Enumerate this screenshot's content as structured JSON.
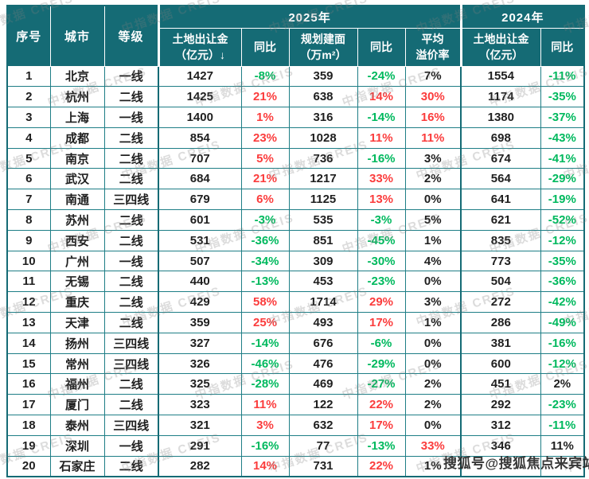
{
  "chart_data": {
    "type": "table",
    "column_groups": [
      {
        "label": "2025年",
        "span": 5
      },
      {
        "label": "2024年",
        "span": 2
      }
    ],
    "fixed_columns": [
      {
        "key": "no",
        "label": "序号"
      },
      {
        "key": "city",
        "label": "城市"
      },
      {
        "key": "tier",
        "label": "等级"
      }
    ],
    "sub_columns": [
      {
        "key": "land_fee_2025",
        "l1": "土地出让金",
        "l2": "（亿元）↓"
      },
      {
        "key": "land_fee_2025_yoy",
        "l1": "同比",
        "l2": ""
      },
      {
        "key": "plan_area_2025",
        "l1": "规划建面",
        "l2": "（万m²）"
      },
      {
        "key": "plan_area_2025_yoy",
        "l1": "同比",
        "l2": ""
      },
      {
        "key": "avg_premium_rate",
        "l1": "平均",
        "l2": "溢价率"
      },
      {
        "key": "land_fee_2024",
        "l1": "土地出让金",
        "l2": "（亿元）"
      },
      {
        "key": "land_fee_2024_yoy",
        "l1": "同比",
        "l2": ""
      }
    ],
    "color_legend": {
      "g": "negative-green",
      "r": "positive-red",
      "default": "dark"
    },
    "rows": [
      [
        {
          "v": "1"
        },
        {
          "v": "北京"
        },
        {
          "v": "一线"
        },
        {
          "v": "1427"
        },
        {
          "v": "-8%",
          "c": "g"
        },
        {
          "v": "359"
        },
        {
          "v": "-24%",
          "c": "g"
        },
        {
          "v": "7%"
        },
        {
          "v": "1554"
        },
        {
          "v": "-11%",
          "c": "g"
        }
      ],
      [
        {
          "v": "2"
        },
        {
          "v": "杭州"
        },
        {
          "v": "二线"
        },
        {
          "v": "1425"
        },
        {
          "v": "21%",
          "c": "r"
        },
        {
          "v": "638"
        },
        {
          "v": "14%",
          "c": "r"
        },
        {
          "v": "30%",
          "c": "r"
        },
        {
          "v": "1174"
        },
        {
          "v": "-35%",
          "c": "g"
        }
      ],
      [
        {
          "v": "3"
        },
        {
          "v": "上海"
        },
        {
          "v": "一线"
        },
        {
          "v": "1400"
        },
        {
          "v": "1%",
          "c": "r"
        },
        {
          "v": "316"
        },
        {
          "v": "-14%",
          "c": "g"
        },
        {
          "v": "16%",
          "c": "r"
        },
        {
          "v": "1380"
        },
        {
          "v": "-37%",
          "c": "g"
        }
      ],
      [
        {
          "v": "4"
        },
        {
          "v": "成都"
        },
        {
          "v": "二线"
        },
        {
          "v": "854"
        },
        {
          "v": "23%",
          "c": "r"
        },
        {
          "v": "1028"
        },
        {
          "v": "11%",
          "c": "r"
        },
        {
          "v": "11%",
          "c": "r"
        },
        {
          "v": "698"
        },
        {
          "v": "-43%",
          "c": "g"
        }
      ],
      [
        {
          "v": "5"
        },
        {
          "v": "南京"
        },
        {
          "v": "二线"
        },
        {
          "v": "707"
        },
        {
          "v": "5%",
          "c": "r"
        },
        {
          "v": "736"
        },
        {
          "v": "-16%",
          "c": "g"
        },
        {
          "v": "3%"
        },
        {
          "v": "674"
        },
        {
          "v": "-41%",
          "c": "g"
        }
      ],
      [
        {
          "v": "6"
        },
        {
          "v": "武汉"
        },
        {
          "v": "二线"
        },
        {
          "v": "684"
        },
        {
          "v": "21%",
          "c": "r"
        },
        {
          "v": "1217"
        },
        {
          "v": "33%",
          "c": "r"
        },
        {
          "v": "2%"
        },
        {
          "v": "564"
        },
        {
          "v": "-29%",
          "c": "g"
        }
      ],
      [
        {
          "v": "7"
        },
        {
          "v": "南通"
        },
        {
          "v": "三四线"
        },
        {
          "v": "679"
        },
        {
          "v": "6%",
          "c": "r"
        },
        {
          "v": "1125"
        },
        {
          "v": "13%",
          "c": "r"
        },
        {
          "v": "0%"
        },
        {
          "v": "641"
        },
        {
          "v": "-19%",
          "c": "g"
        }
      ],
      [
        {
          "v": "8"
        },
        {
          "v": "苏州"
        },
        {
          "v": "二线"
        },
        {
          "v": "601"
        },
        {
          "v": "-3%",
          "c": "g"
        },
        {
          "v": "535"
        },
        {
          "v": "-3%",
          "c": "g"
        },
        {
          "v": "5%"
        },
        {
          "v": "621"
        },
        {
          "v": "-52%",
          "c": "g"
        }
      ],
      [
        {
          "v": "9"
        },
        {
          "v": "西安"
        },
        {
          "v": "二线"
        },
        {
          "v": "531"
        },
        {
          "v": "-36%",
          "c": "g"
        },
        {
          "v": "851"
        },
        {
          "v": "-45%",
          "c": "g"
        },
        {
          "v": "1%"
        },
        {
          "v": "835"
        },
        {
          "v": "-12%",
          "c": "g"
        }
      ],
      [
        {
          "v": "10"
        },
        {
          "v": "广州"
        },
        {
          "v": "一线"
        },
        {
          "v": "507"
        },
        {
          "v": "-34%",
          "c": "g"
        },
        {
          "v": "309"
        },
        {
          "v": "-30%",
          "c": "g"
        },
        {
          "v": "4%"
        },
        {
          "v": "773"
        },
        {
          "v": "-35%",
          "c": "g"
        }
      ],
      [
        {
          "v": "11"
        },
        {
          "v": "无锡"
        },
        {
          "v": "二线"
        },
        {
          "v": "440"
        },
        {
          "v": "-13%",
          "c": "g"
        },
        {
          "v": "453"
        },
        {
          "v": "-23%",
          "c": "g"
        },
        {
          "v": "0%"
        },
        {
          "v": "504"
        },
        {
          "v": "-36%",
          "c": "g"
        }
      ],
      [
        {
          "v": "12"
        },
        {
          "v": "重庆"
        },
        {
          "v": "二线"
        },
        {
          "v": "429"
        },
        {
          "v": "58%",
          "c": "r"
        },
        {
          "v": "1714"
        },
        {
          "v": "29%",
          "c": "r"
        },
        {
          "v": "3%"
        },
        {
          "v": "272"
        },
        {
          "v": "-42%",
          "c": "g"
        }
      ],
      [
        {
          "v": "13"
        },
        {
          "v": "天津"
        },
        {
          "v": "二线"
        },
        {
          "v": "359"
        },
        {
          "v": "25%",
          "c": "r"
        },
        {
          "v": "493"
        },
        {
          "v": "17%",
          "c": "r"
        },
        {
          "v": "1%"
        },
        {
          "v": "286"
        },
        {
          "v": "-49%",
          "c": "g"
        }
      ],
      [
        {
          "v": "14"
        },
        {
          "v": "扬州"
        },
        {
          "v": "三四线"
        },
        {
          "v": "327"
        },
        {
          "v": "-14%",
          "c": "g"
        },
        {
          "v": "676"
        },
        {
          "v": "-6%",
          "c": "g"
        },
        {
          "v": "0%"
        },
        {
          "v": "381"
        },
        {
          "v": "-16%",
          "c": "g"
        }
      ],
      [
        {
          "v": "15"
        },
        {
          "v": "常州"
        },
        {
          "v": "三四线"
        },
        {
          "v": "326"
        },
        {
          "v": "-46%",
          "c": "g"
        },
        {
          "v": "476"
        },
        {
          "v": "-29%",
          "c": "g"
        },
        {
          "v": "0%"
        },
        {
          "v": "600"
        },
        {
          "v": "-12%",
          "c": "g"
        }
      ],
      [
        {
          "v": "16"
        },
        {
          "v": "福州"
        },
        {
          "v": "二线"
        },
        {
          "v": "325"
        },
        {
          "v": "-28%",
          "c": "g"
        },
        {
          "v": "469"
        },
        {
          "v": "-27%",
          "c": "g"
        },
        {
          "v": "2%"
        },
        {
          "v": "451"
        },
        {
          "v": "2%"
        }
      ],
      [
        {
          "v": "17"
        },
        {
          "v": "厦门"
        },
        {
          "v": "二线"
        },
        {
          "v": "323"
        },
        {
          "v": "11%",
          "c": "r"
        },
        {
          "v": "122"
        },
        {
          "v": "22%",
          "c": "r"
        },
        {
          "v": "2%"
        },
        {
          "v": "292"
        },
        {
          "v": "-23%",
          "c": "g"
        }
      ],
      [
        {
          "v": "18"
        },
        {
          "v": "泰州"
        },
        {
          "v": "三四线"
        },
        {
          "v": "321"
        },
        {
          "v": "3%",
          "c": "r"
        },
        {
          "v": "632"
        },
        {
          "v": "17%",
          "c": "r"
        },
        {
          "v": "0%"
        },
        {
          "v": "312"
        },
        {
          "v": "-11%",
          "c": "g"
        }
      ],
      [
        {
          "v": "19"
        },
        {
          "v": "深圳"
        },
        {
          "v": "一线"
        },
        {
          "v": "291"
        },
        {
          "v": "-16%",
          "c": "g"
        },
        {
          "v": "77"
        },
        {
          "v": "-13%",
          "c": "g"
        },
        {
          "v": "33%",
          "c": "r"
        },
        {
          "v": "346"
        },
        {
          "v": "11%"
        }
      ],
      [
        {
          "v": "20"
        },
        {
          "v": "石家庄"
        },
        {
          "v": "二线"
        },
        {
          "v": "282"
        },
        {
          "v": "14%",
          "c": "r"
        },
        {
          "v": "731"
        },
        {
          "v": "22%",
          "c": "r"
        },
        {
          "v": "1%"
        },
        {
          "v": ""
        },
        {
          "v": ""
        }
      ]
    ]
  },
  "watermarks": {
    "vendor": "中指数据 CREIS",
    "sohu": "搜狐号@搜狐焦点来宾站"
  },
  "colors": {
    "header_bg": "#156B75",
    "border": "#1E7E86",
    "positive_red": "#FB3C3C",
    "negative_green": "#00B95E",
    "text_dark": "#1F1F1F"
  }
}
